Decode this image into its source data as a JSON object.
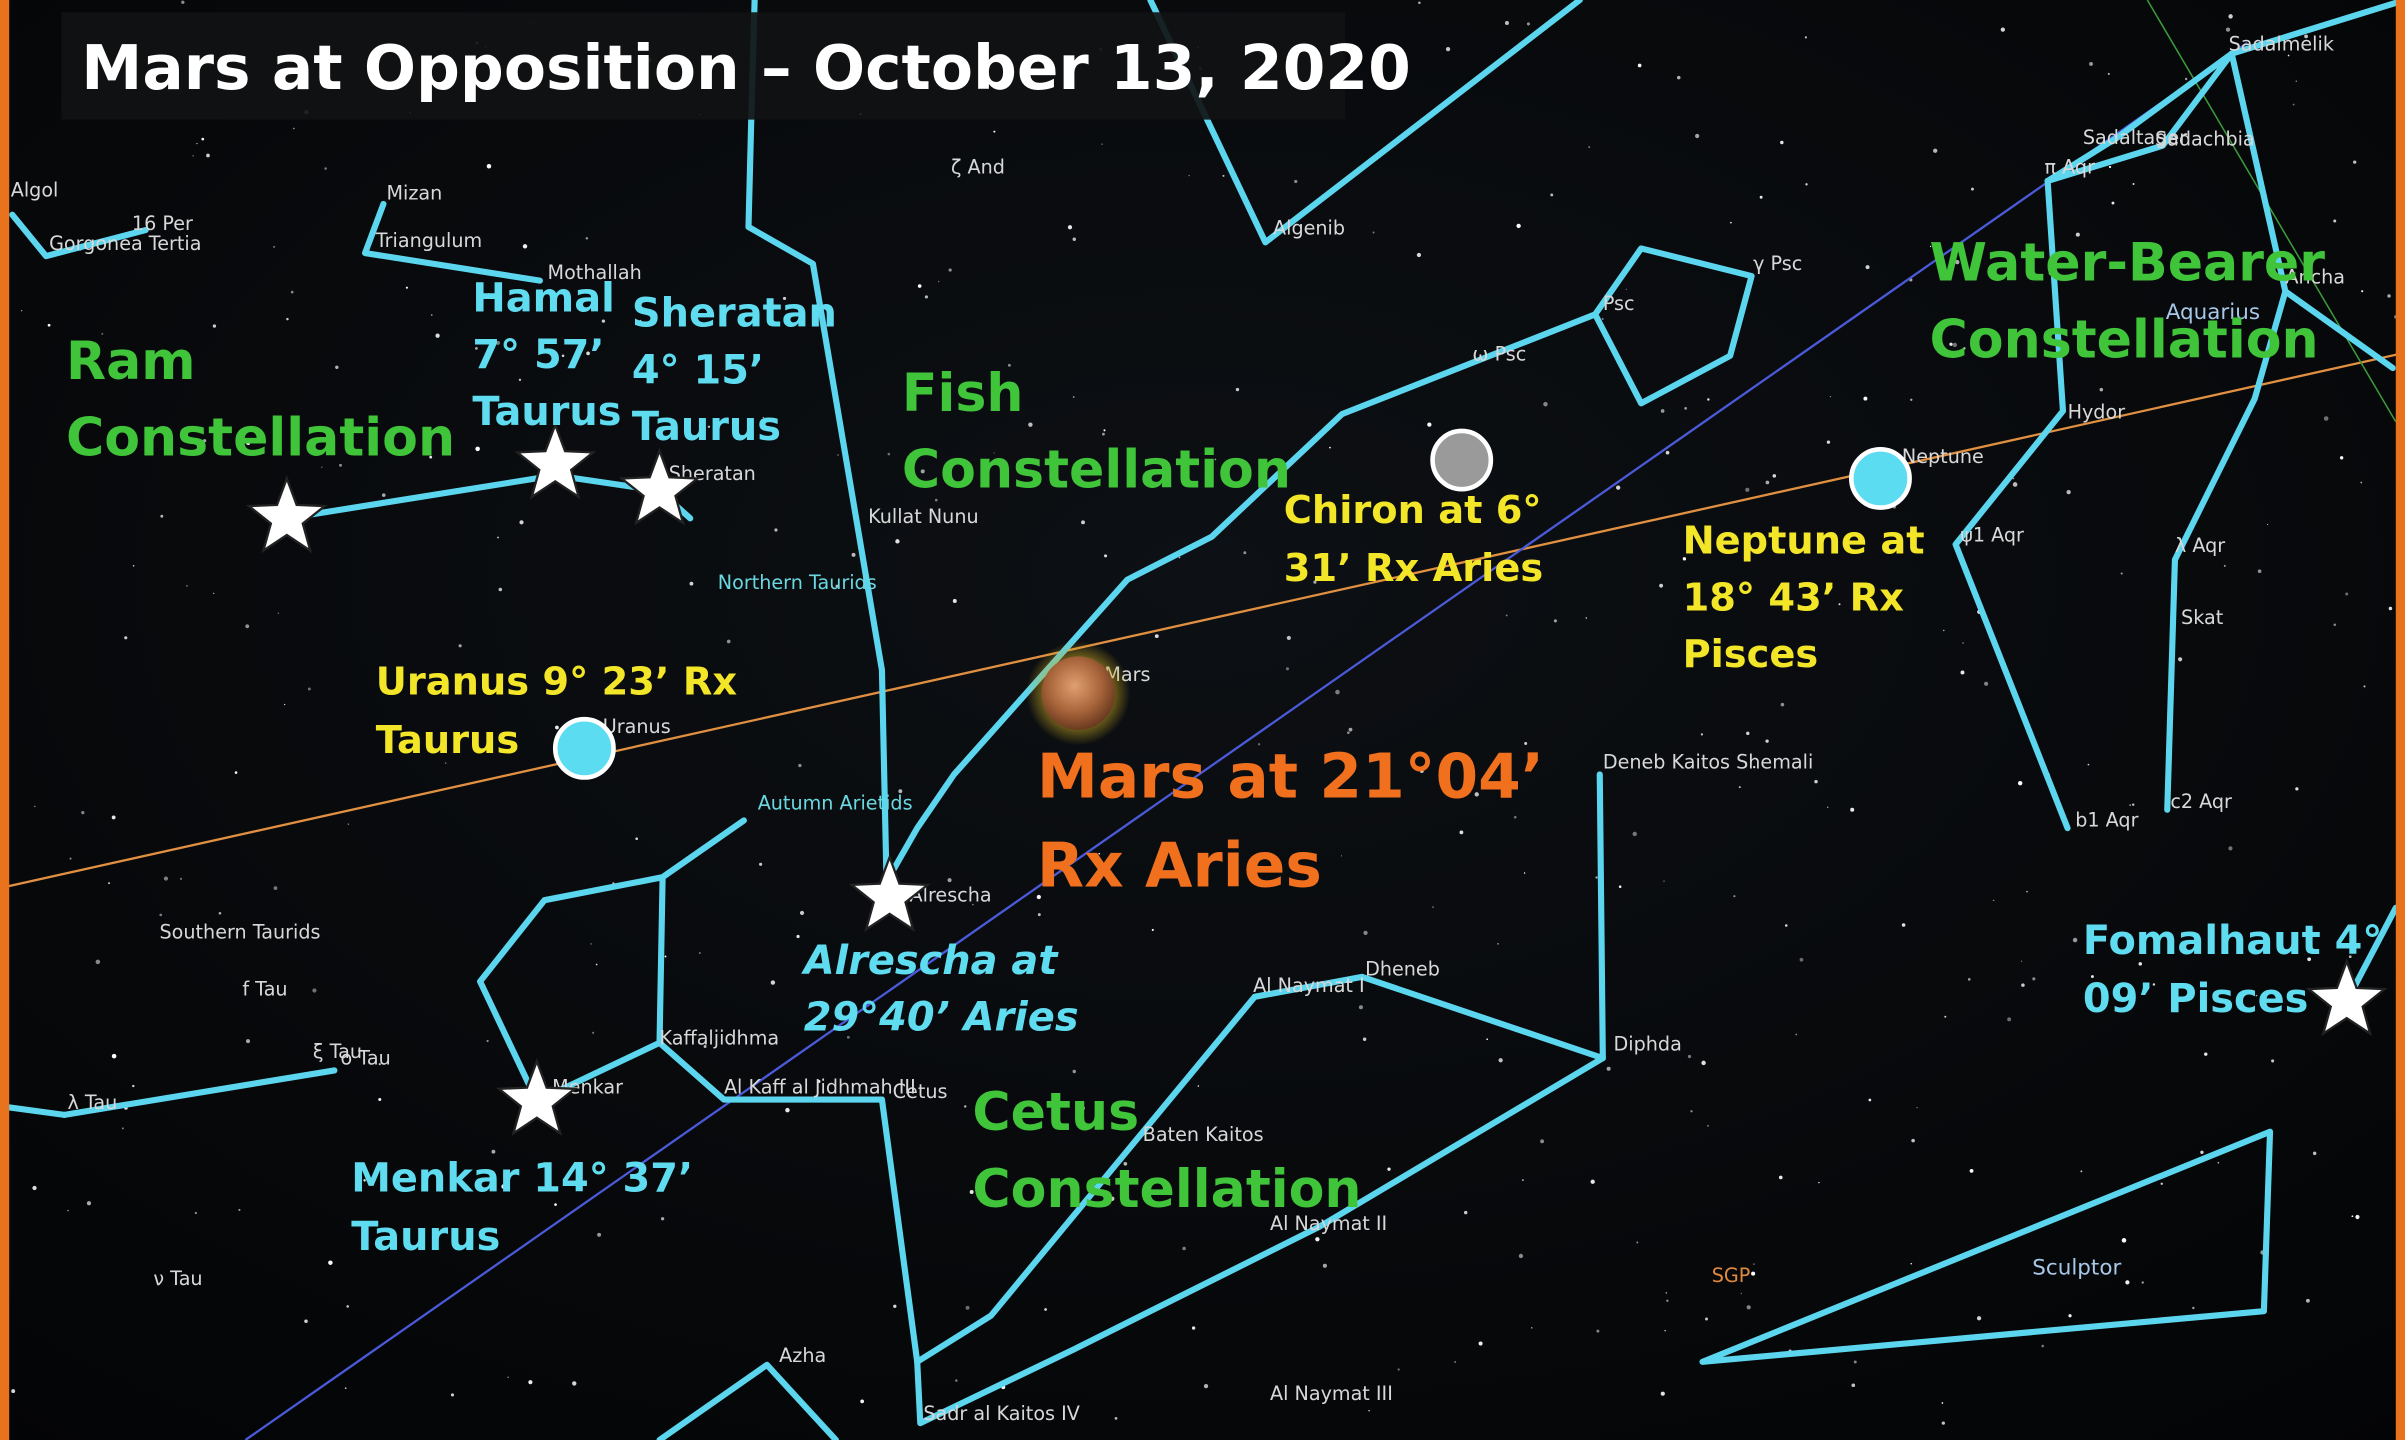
{
  "title": "Mars at Opposition – October 13, 2020",
  "annotations": [
    {
      "lines": [
        "Ram",
        "Constellation"
      ]
    },
    {
      "lines": [
        "Hamal",
        "7° 57’",
        "Taurus"
      ]
    },
    {
      "lines": [
        "Sheratan",
        "4° 15’",
        "Taurus"
      ]
    },
    {
      "lines": [
        "Fish",
        "Constellation"
      ]
    },
    {
      "lines": [
        "Chiron at 6°",
        "31’ Rx Aries"
      ]
    },
    {
      "lines": [
        "Neptune at",
        "18° 43’ Rx",
        "Pisces"
      ]
    },
    {
      "lines": [
        "Water-Bearer",
        "Constellation"
      ]
    },
    {
      "lines": [
        "Uranus 9° 23’ Rx",
        "Taurus"
      ]
    },
    {
      "lines": [
        "Mars at 21°04’",
        "Rx Aries"
      ]
    },
    {
      "lines": [
        "Alrescha at",
        "29°40’ Aries"
      ]
    },
    {
      "lines": [
        "Fomalhaut 4°",
        "09’  Pisces"
      ]
    },
    {
      "lines": [
        "Menkar 14° 37’",
        "Taurus"
      ]
    },
    {
      "lines": [
        "Cetus",
        "Constellation"
      ]
    }
  ],
  "sky_labels": [
    "Algol",
    "16 Per",
    "Gorgonea Tertia",
    "Mizan",
    "Triangulum",
    "Mothallah",
    "Sheratan",
    "Kullat Nunu",
    "Northern Taurids",
    "ζ And",
    "Algenib",
    "γ Psc",
    "Psc",
    "ω Psc",
    "Uranus",
    "Autumn Arietids",
    "Mars",
    "Alrescha",
    "Southern Taurids",
    "f Tau",
    "ξ Tau",
    "o Tau",
    "λ Tau",
    "Menkar",
    "Kaffaljidhma",
    "Al Kaff al Jidhmah III",
    "Cetus",
    "Baten Kaitos",
    "Al Naymat I",
    "Dheneb",
    "Diphda",
    "Al Naymat II",
    "Deneb Kaitos Shemali",
    "SGP",
    "Sculptor",
    "Azha",
    "Al Naymat III",
    "Sadr al Kaitos IV",
    "ν Tau",
    "Sadalmelik",
    "Sadaltager",
    "Sadachbia",
    "π Aqr",
    "Ancha",
    "Aquarius",
    "Hydor",
    "Neptune",
    "ψ1 Aqr",
    "λ Aqr",
    "Skat",
    "b1 Aqr",
    "c2 Aqr"
  ]
}
